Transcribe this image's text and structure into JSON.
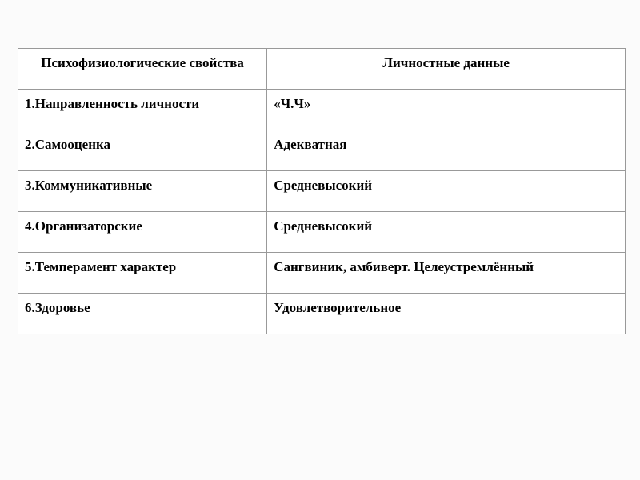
{
  "table": {
    "type": "table",
    "background_color": "#ffffff",
    "border_color": "#999999",
    "font_family": "Times New Roman",
    "header_fontsize": 17,
    "cell_fontsize": 17,
    "text_color": "#000000",
    "col_widths_pct": [
      41,
      59
    ],
    "columns": [
      "Психофизиологические свойства",
      "Личностные данные"
    ],
    "rows": [
      {
        "property": "1.Направленность личности",
        "value": "«Ч.Ч»"
      },
      {
        "property": "2.Самооценка",
        "value": "Адекватная"
      },
      {
        "property": "3.Коммуникативные",
        "value": "Средневысокий"
      },
      {
        "property": "4.Организаторские",
        "value": "Средневысокий"
      },
      {
        "property": "5.Темперамент характер",
        "value": "Сангвиник, амбиверт. Целеустремлённый"
      },
      {
        "property": "6.Здоровье",
        "value": "Удовлетворительное"
      }
    ]
  }
}
